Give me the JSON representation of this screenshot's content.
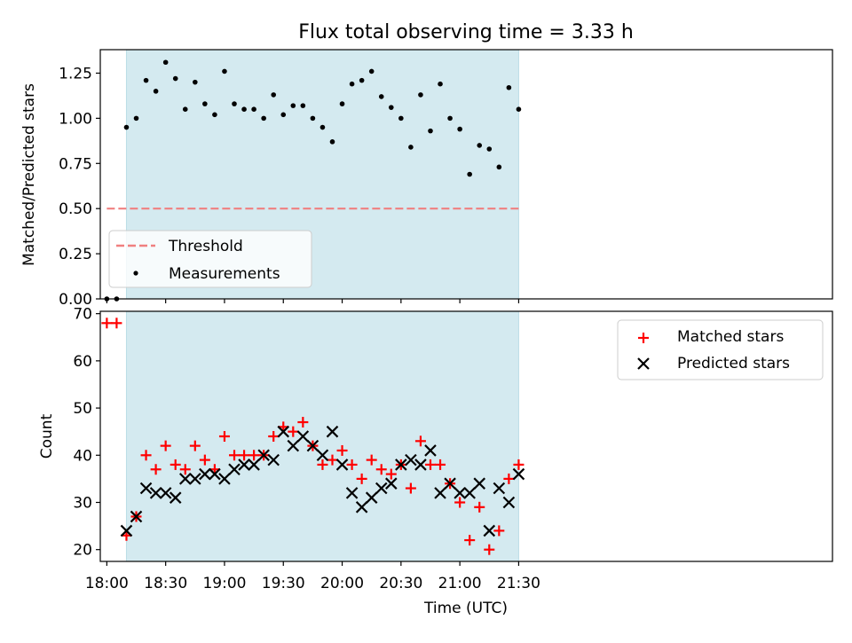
{
  "chart_data": [
    {
      "type": "scatter",
      "title": "Flux total observing time = 3.33 h",
      "ylabel": "Matched/Predicted stars",
      "ylim": [
        0,
        1.38
      ],
      "yticks": [
        0.0,
        0.25,
        0.5,
        0.75,
        1.0,
        1.25
      ],
      "ytick_labels": [
        "0.00",
        "0.25",
        "0.50",
        "0.75",
        "1.00",
        "1.25"
      ],
      "xlim": [
        -5,
        555
      ],
      "shaded_span": [
        15,
        315
      ],
      "shade_color": "#d4eaf0",
      "threshold": {
        "name": "Threshold",
        "value": 0.5,
        "x_range": [
          0,
          315
        ],
        "color": "#f08080"
      },
      "series": [
        {
          "name": "Measurements",
          "color": "#000000",
          "x": [
            0,
            7.5,
            15,
            22.5,
            30,
            37.5,
            45,
            52.5,
            60,
            67.5,
            75,
            82.5,
            90,
            97.5,
            105,
            112.5,
            120,
            127.5,
            135,
            142.5,
            150,
            157.5,
            165,
            172.5,
            180,
            187.5,
            195,
            202.5,
            210,
            217.5,
            225,
            232.5,
            240,
            247.5,
            255,
            262.5,
            270,
            277.5,
            285,
            292.5,
            300,
            307.5,
            315
          ],
          "y": [
            0.0,
            0.0,
            0.95,
            1.0,
            1.21,
            1.15,
            1.31,
            1.22,
            1.05,
            1.2,
            1.08,
            1.02,
            1.26,
            1.08,
            1.05,
            1.05,
            1.0,
            1.13,
            1.02,
            1.07,
            1.07,
            1.0,
            0.95,
            0.87,
            1.08,
            1.19,
            1.21,
            1.26,
            1.12,
            1.06,
            1.0,
            0.84,
            1.13,
            0.93,
            1.19,
            1.0,
            0.94,
            0.69,
            0.85,
            0.83,
            0.73,
            1.17,
            1.05
          ]
        }
      ],
      "legend": {
        "placement": "lower-left",
        "entries": [
          "Threshold",
          "Measurements"
        ]
      }
    },
    {
      "type": "scatter",
      "xlabel": "Time (UTC)",
      "ylabel": "Count",
      "ylim": [
        17.5,
        70.5
      ],
      "yticks": [
        20,
        30,
        40,
        50,
        60,
        70
      ],
      "ytick_labels": [
        "20",
        "30",
        "40",
        "50",
        "60",
        "70"
      ],
      "xlim": [
        -5,
        555
      ],
      "xticks": [
        0,
        45,
        90,
        135,
        180,
        225,
        270,
        315
      ],
      "xtick_labels": [
        "18:00",
        "18:30",
        "19:00",
        "19:30",
        "20:00",
        "20:30",
        "21:00",
        "21:30"
      ],
      "shaded_span": [
        15,
        315
      ],
      "shade_color": "#d4eaf0",
      "series": [
        {
          "name": "Matched stars",
          "marker": "+",
          "color": "#ff0000",
          "x": [
            0,
            7.5,
            15,
            22.5,
            30,
            37.5,
            45,
            52.5,
            60,
            67.5,
            75,
            82.5,
            90,
            97.5,
            105,
            112.5,
            120,
            127.5,
            135,
            142.5,
            150,
            157.5,
            165,
            172.5,
            180,
            187.5,
            195,
            202.5,
            210,
            217.5,
            225,
            232.5,
            240,
            247.5,
            255,
            262.5,
            270,
            277.5,
            285,
            292.5,
            300,
            307.5,
            315
          ],
          "y": [
            68,
            68,
            23,
            27,
            40,
            37,
            42,
            38,
            37,
            42,
            39,
            37,
            44,
            40,
            40,
            40,
            40,
            44,
            46,
            45,
            47,
            42,
            38,
            39,
            41,
            38,
            35,
            39,
            37,
            36,
            38,
            33,
            43,
            38,
            38,
            34,
            30,
            22,
            29,
            20,
            24,
            35,
            38
          ]
        },
        {
          "name": "Predicted stars",
          "marker": "x",
          "color": "#000000",
          "x": [
            15,
            22.5,
            30,
            37.5,
            45,
            52.5,
            60,
            67.5,
            75,
            82.5,
            90,
            97.5,
            105,
            112.5,
            120,
            127.5,
            135,
            142.5,
            150,
            157.5,
            165,
            172.5,
            180,
            187.5,
            195,
            202.5,
            210,
            217.5,
            225,
            232.5,
            240,
            247.5,
            255,
            262.5,
            270,
            277.5,
            285,
            292.5,
            300,
            307.5,
            315
          ],
          "y": [
            24,
            27,
            33,
            32,
            32,
            31,
            35,
            35,
            36,
            36,
            35,
            37,
            38,
            38,
            40,
            39,
            45,
            42,
            44,
            42,
            40,
            45,
            38,
            32,
            29,
            31,
            33,
            34,
            38,
            39,
            38,
            41,
            32,
            34,
            32,
            32,
            34,
            24,
            33,
            30,
            36
          ]
        }
      ],
      "legend": {
        "placement": "upper-right",
        "entries": [
          "Matched stars",
          "Predicted stars"
        ]
      }
    }
  ]
}
